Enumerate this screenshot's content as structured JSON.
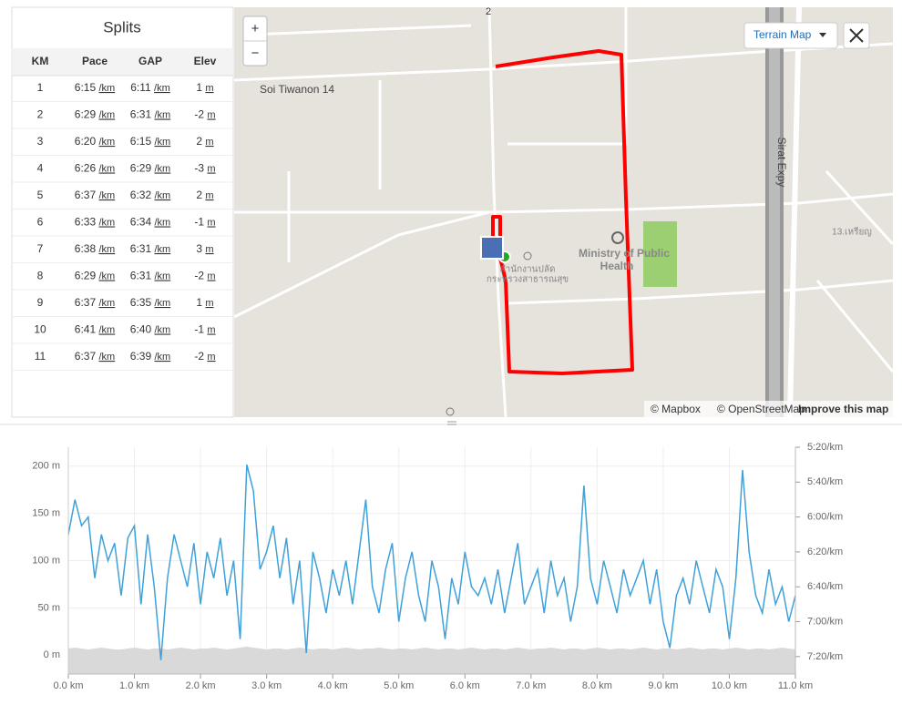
{
  "splits": {
    "title": "Splits",
    "headers": [
      "KM",
      "Pace",
      "GAP",
      "Elev"
    ],
    "pace_unit": "/km",
    "elev_unit": "m",
    "rows": [
      {
        "km": "1",
        "pace": "6:15",
        "gap": "6:11",
        "elev": "1"
      },
      {
        "km": "2",
        "pace": "6:29",
        "gap": "6:31",
        "elev": "-2"
      },
      {
        "km": "3",
        "pace": "6:20",
        "gap": "6:15",
        "elev": "2"
      },
      {
        "km": "4",
        "pace": "6:26",
        "gap": "6:29",
        "elev": "-3"
      },
      {
        "km": "5",
        "pace": "6:37",
        "gap": "6:32",
        "elev": "2"
      },
      {
        "km": "6",
        "pace": "6:33",
        "gap": "6:34",
        "elev": "-1"
      },
      {
        "km": "7",
        "pace": "6:38",
        "gap": "6:31",
        "elev": "3"
      },
      {
        "km": "8",
        "pace": "6:29",
        "gap": "6:31",
        "elev": "-2"
      },
      {
        "km": "9",
        "pace": "6:37",
        "gap": "6:35",
        "elev": "1"
      },
      {
        "km": "10",
        "pace": "6:41",
        "gap": "6:40",
        "elev": "-1"
      },
      {
        "km": "11",
        "pace": "6:37",
        "gap": "6:39",
        "elev": "-2"
      }
    ]
  },
  "map": {
    "zoom_in": "+",
    "zoom_out": "−",
    "layer": "Terrain Map",
    "road_number": "2",
    "street": "Soi Tiwanon 14",
    "expressway": "Sirat Expy",
    "poi": [
      "Ministry of Public",
      "Health"
    ],
    "poi_thai": [
      "สำนักงานปลัด",
      "กระทรวงสาธารณสุข"
    ],
    "place": "13.เหรียญ",
    "attribution": [
      "© Mapbox",
      "© OpenStreetMap",
      "Improve this map"
    ]
  },
  "chart_data": {
    "type": "line",
    "x": [
      0.0,
      0.1,
      0.2,
      0.3,
      0.4,
      0.5,
      0.6,
      0.7,
      0.8,
      0.9,
      1.0,
      1.1,
      1.2,
      1.3,
      1.4,
      1.5,
      1.6,
      1.7,
      1.8,
      1.9,
      2.0,
      2.1,
      2.2,
      2.3,
      2.4,
      2.5,
      2.6,
      2.7,
      2.8,
      2.9,
      3.0,
      3.1,
      3.2,
      3.3,
      3.4,
      3.5,
      3.6,
      3.7,
      3.8,
      3.9,
      4.0,
      4.1,
      4.2,
      4.3,
      4.4,
      4.5,
      4.6,
      4.7,
      4.8,
      4.9,
      5.0,
      5.1,
      5.2,
      5.3,
      5.4,
      5.5,
      5.6,
      5.7,
      5.8,
      5.9,
      6.0,
      6.1,
      6.2,
      6.3,
      6.4,
      6.5,
      6.6,
      6.7,
      6.8,
      6.9,
      7.0,
      7.1,
      7.2,
      7.3,
      7.4,
      7.5,
      7.6,
      7.7,
      7.8,
      7.9,
      8.0,
      8.1,
      8.2,
      8.3,
      8.4,
      8.5,
      8.6,
      8.7,
      8.8,
      8.9,
      9.0,
      9.1,
      9.2,
      9.3,
      9.4,
      9.5,
      9.6,
      9.7,
      9.8,
      9.9,
      10.0,
      10.1,
      10.2,
      10.3,
      10.4,
      10.5,
      10.6,
      10.7,
      10.8,
      10.9,
      11.0
    ],
    "series": [
      {
        "name": "Pace",
        "color": "#3ea1d9",
        "axis": "y2",
        "values": [
          370,
          350,
          365,
          360,
          395,
          370,
          385,
          375,
          405,
          372,
          365,
          410,
          370,
          400,
          442,
          395,
          370,
          385,
          400,
          375,
          410,
          380,
          395,
          372,
          405,
          385,
          430,
          330,
          345,
          390,
          380,
          365,
          395,
          372,
          410,
          385,
          438,
          380,
          395,
          415,
          390,
          405,
          385,
          410,
          380,
          350,
          400,
          415,
          390,
          375,
          420,
          395,
          380,
          405,
          420,
          385,
          400,
          430,
          395,
          410,
          380,
          400,
          405,
          395,
          410,
          390,
          415,
          395,
          375,
          410,
          400,
          390,
          415,
          385,
          405,
          395,
          420,
          400,
          342,
          395,
          410,
          385,
          400,
          415,
          390,
          405,
          395,
          385,
          410,
          390,
          420,
          435,
          405,
          395,
          410,
          385,
          400,
          415,
          390,
          400,
          430,
          395,
          333,
          380,
          405,
          415,
          390,
          410,
          400,
          420,
          405
        ]
      },
      {
        "name": "Elevation",
        "color": "#d9d9d9",
        "values": [
          7,
          8,
          7,
          6,
          7,
          8,
          7,
          6,
          6,
          7,
          8,
          7,
          6,
          7,
          7,
          6,
          7,
          8,
          7,
          6,
          7,
          7,
          8,
          7,
          6,
          7,
          8,
          9,
          8,
          7,
          6,
          7,
          7,
          6,
          7,
          8,
          7,
          6,
          7,
          7,
          6,
          7,
          8,
          7,
          6,
          7,
          7,
          8,
          7,
          6,
          7,
          7,
          6,
          7,
          8,
          7,
          6,
          7,
          7,
          6,
          7,
          8,
          7,
          6,
          7,
          7,
          6,
          7,
          8,
          7,
          6,
          7,
          7,
          8,
          7,
          6,
          7,
          7,
          6,
          7,
          8,
          7,
          6,
          7,
          7,
          6,
          7,
          8,
          7,
          6,
          7,
          7,
          6,
          7,
          8,
          7,
          6,
          7,
          7,
          6,
          7,
          8,
          7,
          6,
          7,
          7,
          6,
          7,
          8,
          7,
          6
        ]
      }
    ],
    "xlim": [
      0,
      11
    ],
    "xticks": [
      {
        "value": 0,
        "label": "0.0 km"
      },
      {
        "value": 1,
        "label": "1.0 km"
      },
      {
        "value": 2,
        "label": "2.0 km"
      },
      {
        "value": 3,
        "label": "3.0 km"
      },
      {
        "value": 4,
        "label": "4.0 km"
      },
      {
        "value": 5,
        "label": "5.0 km"
      },
      {
        "value": 6,
        "label": "6.0 km"
      },
      {
        "value": 7,
        "label": "7.0 km"
      },
      {
        "value": 8,
        "label": "8.0 km"
      },
      {
        "value": 9,
        "label": "9.0 km"
      },
      {
        "value": 10,
        "label": "10.0 km"
      },
      {
        "value": 11,
        "label": "11.0 km"
      }
    ],
    "ylim": [
      -20,
      220
    ],
    "yticks": [
      {
        "value": 0,
        "label": "0 m"
      },
      {
        "value": 50,
        "label": "50 m"
      },
      {
        "value": 100,
        "label": "100 m"
      },
      {
        "value": 150,
        "label": "150 m"
      },
      {
        "value": 200,
        "label": "200 m"
      }
    ],
    "y2lim": [
      450,
      320
    ],
    "y2ticks": [
      {
        "value": 320,
        "label": "5:20/km"
      },
      {
        "value": 340,
        "label": "5:40/km"
      },
      {
        "value": 360,
        "label": "6:00/km"
      },
      {
        "value": 380,
        "label": "6:20/km"
      },
      {
        "value": 400,
        "label": "6:40/km"
      },
      {
        "value": 420,
        "label": "7:00/km"
      },
      {
        "value": 440,
        "label": "7:20/km"
      }
    ],
    "grid": true
  }
}
